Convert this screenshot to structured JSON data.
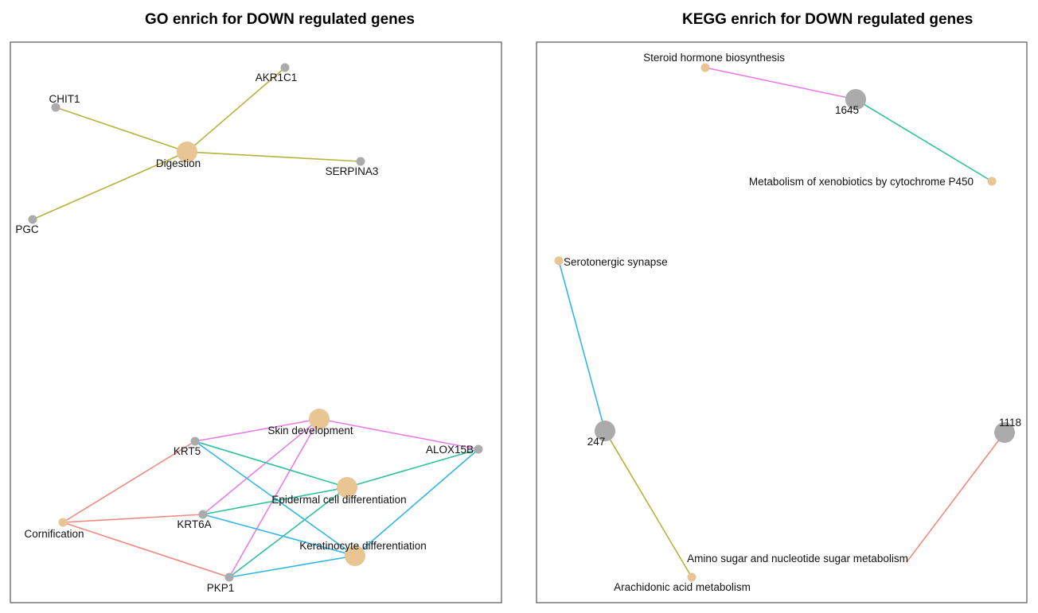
{
  "colors": {
    "frame": "#555555",
    "category_node": "#E8C593",
    "gene_node": "#ABABAB",
    "olive": "#B5B33A",
    "pink": "#F08A80",
    "green": "#2DC29B",
    "blue": "#2FB7E8",
    "magenta": "#E77EE8"
  },
  "go_panel": {
    "title": "GO enrich for DOWN regulated genes",
    "nodes": [
      {
        "id": "digestion",
        "label": "Digestion",
        "kind": "category"
      },
      {
        "id": "akr1c1",
        "label": "AKR1C1",
        "kind": "gene"
      },
      {
        "id": "chit1",
        "label": "CHIT1",
        "kind": "gene"
      },
      {
        "id": "serpina3",
        "label": "SERPINA3",
        "kind": "gene"
      },
      {
        "id": "pgc",
        "label": "PGC",
        "kind": "gene"
      },
      {
        "id": "skin_dev",
        "label": "Skin development",
        "kind": "category"
      },
      {
        "id": "epidermal",
        "label": "Epidermal cell differentiation",
        "kind": "category"
      },
      {
        "id": "keratinocyte",
        "label": "Keratinocyte differentiation",
        "kind": "category"
      },
      {
        "id": "cornification",
        "label": "Cornification",
        "kind": "category"
      },
      {
        "id": "krt5",
        "label": "KRT5",
        "kind": "gene"
      },
      {
        "id": "krt6a",
        "label": "KRT6A",
        "kind": "gene"
      },
      {
        "id": "alox15b",
        "label": "ALOX15B",
        "kind": "gene"
      },
      {
        "id": "pkp1",
        "label": "PKP1",
        "kind": "gene"
      }
    ],
    "edges": [
      {
        "from": "digestion",
        "to": "akr1c1",
        "color": "olive"
      },
      {
        "from": "digestion",
        "to": "chit1",
        "color": "olive"
      },
      {
        "from": "digestion",
        "to": "serpina3",
        "color": "olive"
      },
      {
        "from": "digestion",
        "to": "pgc",
        "color": "olive"
      },
      {
        "from": "skin_dev",
        "to": "krt5",
        "color": "magenta"
      },
      {
        "from": "skin_dev",
        "to": "alox15b",
        "color": "magenta"
      },
      {
        "from": "skin_dev",
        "to": "krt6a",
        "color": "magenta"
      },
      {
        "from": "skin_dev",
        "to": "pkp1",
        "color": "magenta"
      },
      {
        "from": "epidermal",
        "to": "krt5",
        "color": "green"
      },
      {
        "from": "epidermal",
        "to": "alox15b",
        "color": "green"
      },
      {
        "from": "epidermal",
        "to": "krt6a",
        "color": "green"
      },
      {
        "from": "epidermal",
        "to": "pkp1",
        "color": "green"
      },
      {
        "from": "keratinocyte",
        "to": "krt5",
        "color": "blue"
      },
      {
        "from": "keratinocyte",
        "to": "alox15b",
        "color": "blue"
      },
      {
        "from": "keratinocyte",
        "to": "krt6a",
        "color": "blue"
      },
      {
        "from": "keratinocyte",
        "to": "pkp1",
        "color": "blue"
      },
      {
        "from": "cornification",
        "to": "krt5",
        "color": "pink"
      },
      {
        "from": "cornification",
        "to": "krt6a",
        "color": "pink"
      },
      {
        "from": "cornification",
        "to": "pkp1",
        "color": "pink"
      }
    ]
  },
  "kegg_panel": {
    "title": "KEGG enrich for DOWN regulated genes",
    "nodes": [
      {
        "id": "steroid",
        "label": "Steroid hormone biosynthesis",
        "kind": "category"
      },
      {
        "id": "g1645",
        "label": "1645",
        "kind": "gene"
      },
      {
        "id": "xeno",
        "label": "Metabolism of xenobiotics by cytochrome P450",
        "kind": "category"
      },
      {
        "id": "sero",
        "label": "Serotonergic synapse",
        "kind": "category"
      },
      {
        "id": "g247",
        "label": "247",
        "kind": "gene"
      },
      {
        "id": "arach",
        "label": "Arachidonic acid metabolism",
        "kind": "category"
      },
      {
        "id": "g1118",
        "label": "1118",
        "kind": "gene"
      },
      {
        "id": "amino",
        "label": "Amino sugar and nucleotide sugar metabolism",
        "kind": "category"
      }
    ],
    "edges": [
      {
        "from": "steroid",
        "to": "g1645",
        "color": "magenta"
      },
      {
        "from": "g1645",
        "to": "xeno",
        "color": "green"
      },
      {
        "from": "sero",
        "to": "g247",
        "color": "blue"
      },
      {
        "from": "g247",
        "to": "arach",
        "color": "olive"
      },
      {
        "from": "g1118",
        "to": "amino",
        "color": "pink"
      }
    ]
  }
}
